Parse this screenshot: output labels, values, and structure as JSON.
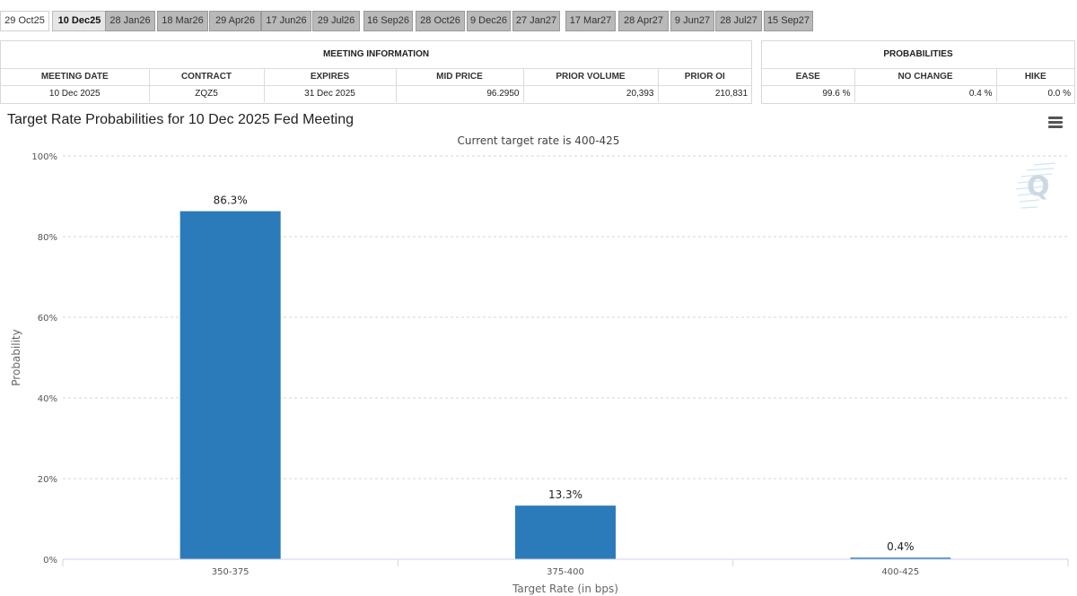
{
  "tabs": [
    {
      "label": "29 Oct25",
      "state": "first"
    },
    {
      "label": "10 Dec25",
      "state": "selected"
    },
    {
      "label": "28 Jan26",
      "state": "normal"
    },
    {
      "label": "18 Mar26",
      "state": "normal"
    },
    {
      "label": "29 Apr26",
      "state": "normal"
    },
    {
      "label": "17 Jun26",
      "state": "normal"
    },
    {
      "label": "29 Jul26",
      "state": "normal"
    },
    {
      "label": "16 Sep26",
      "state": "normal"
    },
    {
      "label": "28 Oct26",
      "state": "normal"
    },
    {
      "label": "9 Dec26",
      "state": "normal"
    },
    {
      "label": "27 Jan27",
      "state": "normal"
    },
    {
      "label": "17 Mar27",
      "state": "normal"
    },
    {
      "label": "28 Apr27",
      "state": "normal"
    },
    {
      "label": "9 Jun27",
      "state": "normal"
    },
    {
      "label": "28 Jul27",
      "state": "normal"
    },
    {
      "label": "15 Sep27",
      "state": "normal"
    }
  ],
  "meeting_info": {
    "title": "MEETING INFORMATION",
    "columns": [
      "MEETING DATE",
      "CONTRACT",
      "EXPIRES",
      "MID PRICE",
      "PRIOR VOLUME",
      "PRIOR OI"
    ],
    "row": [
      "10 Dec 2025",
      "ZQZ5",
      "31 Dec 2025",
      "96.2950",
      "20,393",
      "210,831"
    ]
  },
  "probabilities": {
    "title": "PROBABILITIES",
    "columns": [
      "EASE",
      "NO CHANGE",
      "HIKE"
    ],
    "row": [
      "99.6 %",
      "0.4 %",
      "0.0 %"
    ]
  },
  "chart": {
    "title": "Target Rate Probabilities for 10 Dec 2025 Fed Meeting",
    "subtitle": "Current target rate is 400-425",
    "bar_color": "#2b7bba",
    "menu_icon": "hamburger-menu-icon",
    "watermark_icon": "q-logo-icon"
  },
  "chart_data": {
    "type": "bar",
    "title": "Target Rate Probabilities for 10 Dec 2025 Fed Meeting",
    "subtitle": "Current target rate is 400-425",
    "categories": [
      "350-375",
      "375-400",
      "400-425"
    ],
    "values": [
      86.3,
      13.3,
      0.4
    ],
    "data_labels": [
      "86.3%",
      "13.3%",
      "0.4%"
    ],
    "xlabel": "Target Rate (in bps)",
    "ylabel": "Probability",
    "ylim": [
      0,
      100
    ],
    "yticks": [
      "0%",
      "20%",
      "40%",
      "60%",
      "80%",
      "100%"
    ],
    "ytick_values": [
      0,
      20,
      40,
      60,
      80,
      100
    ],
    "grid": true,
    "legend": "none"
  }
}
